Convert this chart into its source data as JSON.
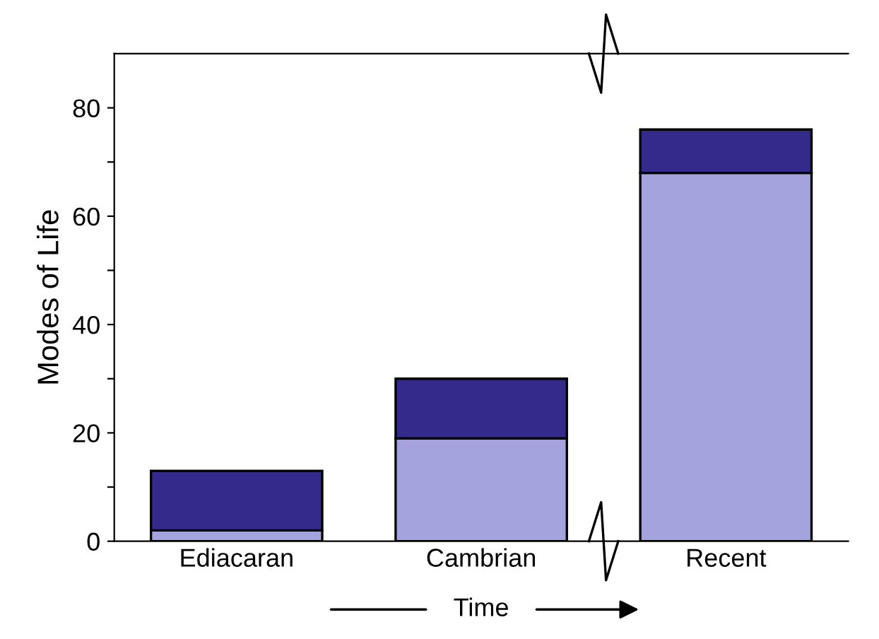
{
  "chart_data": {
    "type": "bar",
    "stacked": true,
    "ylabel": "Modes of Life",
    "xlabel": "Time",
    "categories": [
      "Ediacaran",
      "Cambrian",
      "Recent"
    ],
    "series": [
      {
        "color": "#a5a3dd",
        "values": [
          2,
          19,
          68
        ]
      },
      {
        "color": "#342a8c",
        "values": [
          11,
          11,
          8
        ]
      }
    ],
    "ylim": [
      0,
      90
    ],
    "yticks": [
      0,
      {
        "value": 10,
        "label": null
      },
      20,
      {
        "value": 30,
        "label": null
      },
      40,
      {
        "value": 50,
        "label": null
      },
      60,
      {
        "value": 70,
        "label": null
      },
      80
    ],
    "grid": false,
    "legend": false
  }
}
